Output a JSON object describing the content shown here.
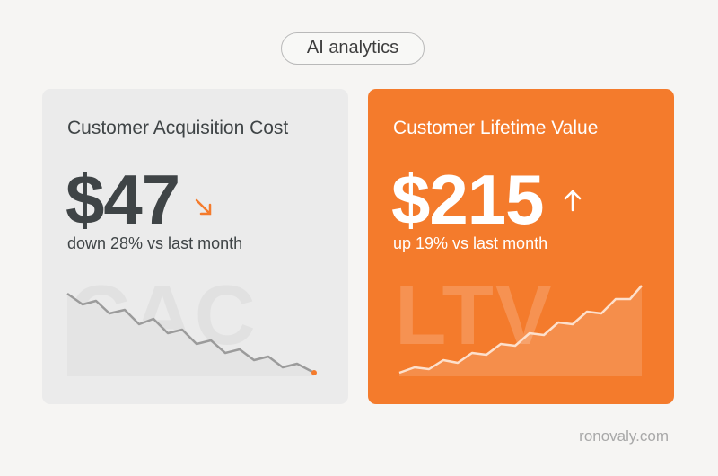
{
  "header": {
    "badge": "AI analytics"
  },
  "cards": [
    {
      "title": "Customer Acquisition Cost",
      "value": "$47",
      "change": "down 28% vs last month",
      "watermark": "CAC"
    },
    {
      "title": "Customer Lifetime Value",
      "value": "$215",
      "change": "up 19% vs last month",
      "watermark": "LTV"
    }
  ],
  "footer": {
    "site": "ronovaly.com"
  }
}
